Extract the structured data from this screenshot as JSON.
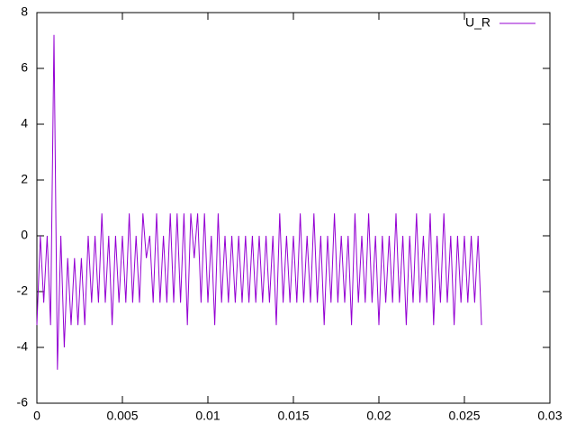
{
  "chart_data": {
    "type": "line",
    "x": [
      0,
      0.0002,
      0.0004,
      0.0006,
      0.0008,
      0.001,
      0.0012,
      0.0014,
      0.0016,
      0.0018,
      0.002,
      0.0022,
      0.0024,
      0.0026,
      0.0028,
      0.003,
      0.0032,
      0.0034,
      0.0036,
      0.0038,
      0.004,
      0.0042,
      0.0044,
      0.0046,
      0.0048,
      0.005,
      0.0052,
      0.0054,
      0.0056,
      0.0058,
      0.006,
      0.0062,
      0.0064,
      0.0066,
      0.0068,
      0.007,
      0.0072,
      0.0074,
      0.0076,
      0.0078,
      0.008,
      0.0082,
      0.0084,
      0.0086,
      0.0088,
      0.009,
      0.0092,
      0.0094,
      0.0096,
      0.0098,
      0.01,
      0.0102,
      0.0104,
      0.0106,
      0.0108,
      0.011,
      0.0112,
      0.0114,
      0.0116,
      0.0118,
      0.012,
      0.0122,
      0.0124,
      0.0126,
      0.0128,
      0.013,
      0.0132,
      0.0134,
      0.0136,
      0.0138,
      0.014,
      0.0142,
      0.0144,
      0.0146,
      0.0148,
      0.015,
      0.0152,
      0.0154,
      0.0156,
      0.0158,
      0.016,
      0.0162,
      0.0164,
      0.0166,
      0.0168,
      0.017,
      0.0172,
      0.0174,
      0.0176,
      0.0178,
      0.018,
      0.0182,
      0.0184,
      0.0186,
      0.0188,
      0.019,
      0.0192,
      0.0194,
      0.0196,
      0.0198,
      0.02,
      0.0202,
      0.0204,
      0.0206,
      0.0208,
      0.021,
      0.0212,
      0.0214,
      0.0216,
      0.0218,
      0.022,
      0.0222,
      0.0224,
      0.0226,
      0.0228,
      0.023,
      0.0232,
      0.0234,
      0.0236,
      0.0238,
      0.024,
      0.0242,
      0.0244,
      0.0246,
      0.0248,
      0.025,
      0.0252,
      0.0254,
      0.0256,
      0.0258,
      0.026
    ],
    "series": [
      {
        "name": "U_R",
        "color": "#9400d3",
        "values": [
          -3.2,
          0,
          -2.4,
          0,
          -3.2,
          7.2,
          -4.8,
          0,
          -4,
          -0.8,
          -3.2,
          -0.8,
          -3.2,
          -0.8,
          -3.2,
          0,
          -2.4,
          0,
          -2.4,
          0.8,
          -2.4,
          0,
          -3.2,
          0,
          -2.4,
          0,
          -2.4,
          0.8,
          -2.4,
          0,
          -2.4,
          0.8,
          -0.8,
          0,
          -2.4,
          0.8,
          -2.4,
          0,
          -2.4,
          0.8,
          -2.4,
          0.8,
          -2.4,
          0.8,
          -3.2,
          0.8,
          -0.8,
          0.8,
          -2.4,
          0.8,
          -2.4,
          0,
          -3.2,
          0.8,
          -2.4,
          0,
          -2.4,
          0,
          -2.4,
          0,
          -2.4,
          0,
          -2.4,
          0,
          -2.4,
          0,
          -2.4,
          0,
          -2.4,
          0,
          -3.2,
          0.8,
          -2.4,
          0,
          -2.4,
          0,
          -2.4,
          0.8,
          -2.4,
          0,
          -2.4,
          0.8,
          -2.4,
          0,
          -3.2,
          0,
          -2.4,
          0.8,
          -2.4,
          0,
          -2.4,
          0,
          -3.2,
          0.8,
          -2.4,
          0,
          -2.4,
          0.8,
          -2.4,
          0,
          -3.2,
          0,
          -2.4,
          0,
          -2.4,
          0.8,
          -2.4,
          0,
          -3.2,
          0,
          -2.4,
          0.8,
          -2.4,
          0,
          -2.4,
          0.8,
          -3.2,
          0,
          -2.4,
          0.8,
          -2.4,
          0,
          -3.2,
          0,
          -2.4,
          0,
          -2.4,
          0,
          -2.4,
          0,
          -3.2
        ]
      }
    ],
    "xlim": [
      0,
      0.03
    ],
    "xticks": [
      0,
      0.005,
      0.01,
      0.015,
      0.02,
      0.025,
      0.03
    ],
    "ylim": [
      -6,
      8
    ],
    "yticks": [
      -6,
      -4,
      -2,
      0,
      2,
      4,
      6,
      8
    ],
    "legend": "top-right",
    "grid": false
  }
}
